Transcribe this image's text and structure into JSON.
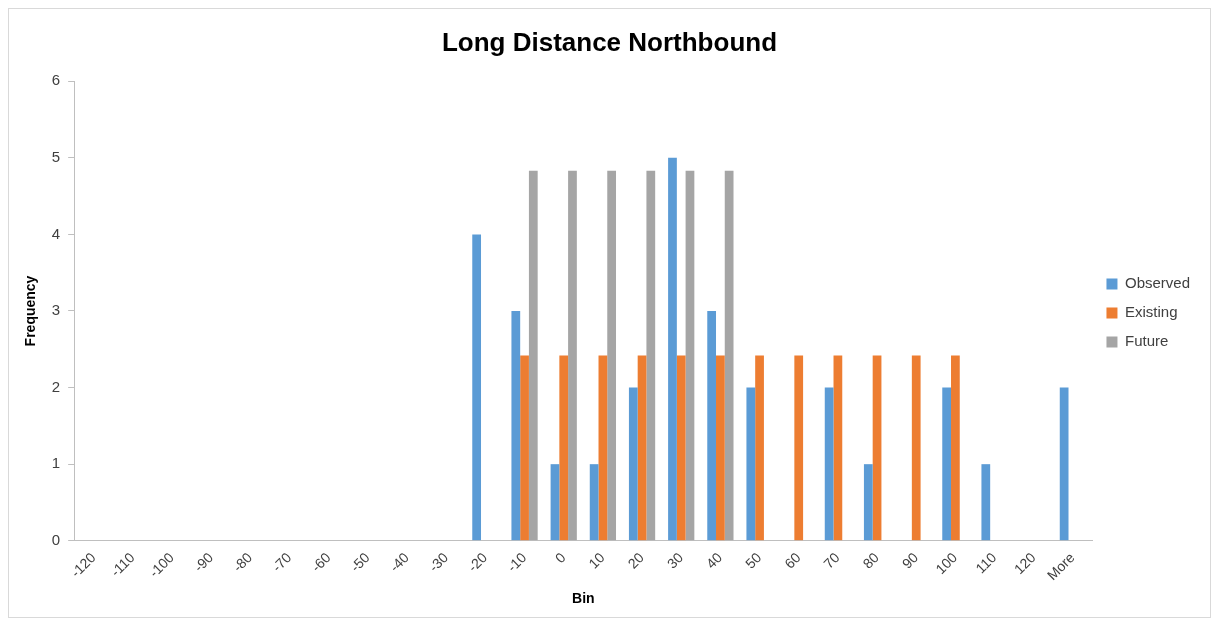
{
  "chart_data": {
    "type": "bar",
    "title": "Long Distance Northbound",
    "xlabel": "Bin",
    "ylabel": "Frequency",
    "categories": [
      "-120",
      "-110",
      "-100",
      "-90",
      "-80",
      "-70",
      "-60",
      "-50",
      "-40",
      "-30",
      "-20",
      "-10",
      "0",
      "10",
      "20",
      "30",
      "40",
      "50",
      "60",
      "70",
      "80",
      "90",
      "100",
      "110",
      "120",
      "More"
    ],
    "series": [
      {
        "name": "Observed",
        "color": "#5b9bd5",
        "values": [
          0,
          0,
          0,
          0,
          0,
          0,
          0,
          0,
          0,
          0,
          4,
          3,
          1,
          1,
          2,
          5,
          3,
          2,
          0,
          2,
          1,
          0,
          2,
          1,
          0,
          2
        ]
      },
      {
        "name": "Existing",
        "color": "#ed7d31",
        "values": [
          0,
          0,
          0,
          0,
          0,
          0,
          0,
          0,
          0,
          0,
          0,
          2.42,
          2.42,
          2.42,
          2.42,
          2.42,
          2.42,
          2.42,
          2.42,
          2.42,
          2.42,
          2.42,
          2.42,
          0,
          0,
          0
        ]
      },
      {
        "name": "Future",
        "color": "#a5a5a5",
        "values": [
          0,
          0,
          0,
          0,
          0,
          0,
          0,
          0,
          0,
          0,
          0,
          4.83,
          4.83,
          4.83,
          4.83,
          4.83,
          4.83,
          0,
          0,
          0,
          0,
          0,
          0,
          0,
          0,
          0
        ]
      }
    ],
    "ylim": [
      0,
      6
    ],
    "yticks": [
      0,
      1,
      2,
      3,
      4,
      5,
      6
    ],
    "grid": false,
    "legend": "right"
  }
}
